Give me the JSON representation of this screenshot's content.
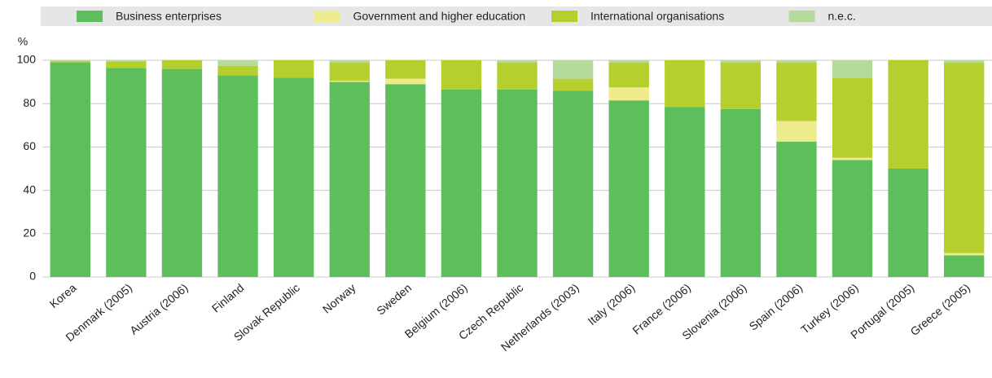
{
  "chart_data": {
    "type": "stacked_bar",
    "y_label": "%",
    "categories": [
      "Korea",
      "Denmark (2005)",
      "Austria (2006)",
      "Finland",
      "Slovak Republic",
      "Norway",
      "Sweden",
      "Belgium (2006)",
      "Czech Republic",
      "Netherlands (2003)",
      "Italy (2006)",
      "France (2006)",
      "Slovenia (2006)",
      "Spain (2006)",
      "Turkey (2006)",
      "Portugal (2005)",
      "Greece (2005)"
    ],
    "series": [
      {
        "name": "Business enterprises",
        "color": "#5cbf5c",
        "values": [
          99,
          96.5,
          96,
          93,
          92,
          90,
          89,
          86.5,
          86.5,
          86,
          81.5,
          78.5,
          77.5,
          62.5,
          54,
          50,
          10
        ]
      },
      {
        "name": "Government and higher education",
        "color": "#eeeb8c",
        "values": [
          0,
          0,
          0,
          0,
          0,
          0.5,
          2.5,
          0,
          0,
          0,
          6,
          0,
          0,
          9.5,
          1,
          0,
          1
        ]
      },
      {
        "name": "International organisations",
        "color": "#b5cf2f",
        "values": [
          0.7,
          3,
          4,
          4.5,
          8,
          8.5,
          8.5,
          13.5,
          12.5,
          5.5,
          11.5,
          21.5,
          21.5,
          27,
          37,
          50,
          88
        ]
      },
      {
        "name": "n.e.c.",
        "color": "#b4da9c",
        "values": [
          0.3,
          0.5,
          0,
          2.5,
          0,
          1,
          0,
          0,
          1,
          8.5,
          1,
          0,
          1,
          1,
          8,
          0,
          1
        ]
      }
    ],
    "ylim": [
      0,
      100
    ],
    "yticks": [
      0,
      20,
      40,
      60,
      80,
      100
    ],
    "grid": true,
    "legend": "top"
  }
}
